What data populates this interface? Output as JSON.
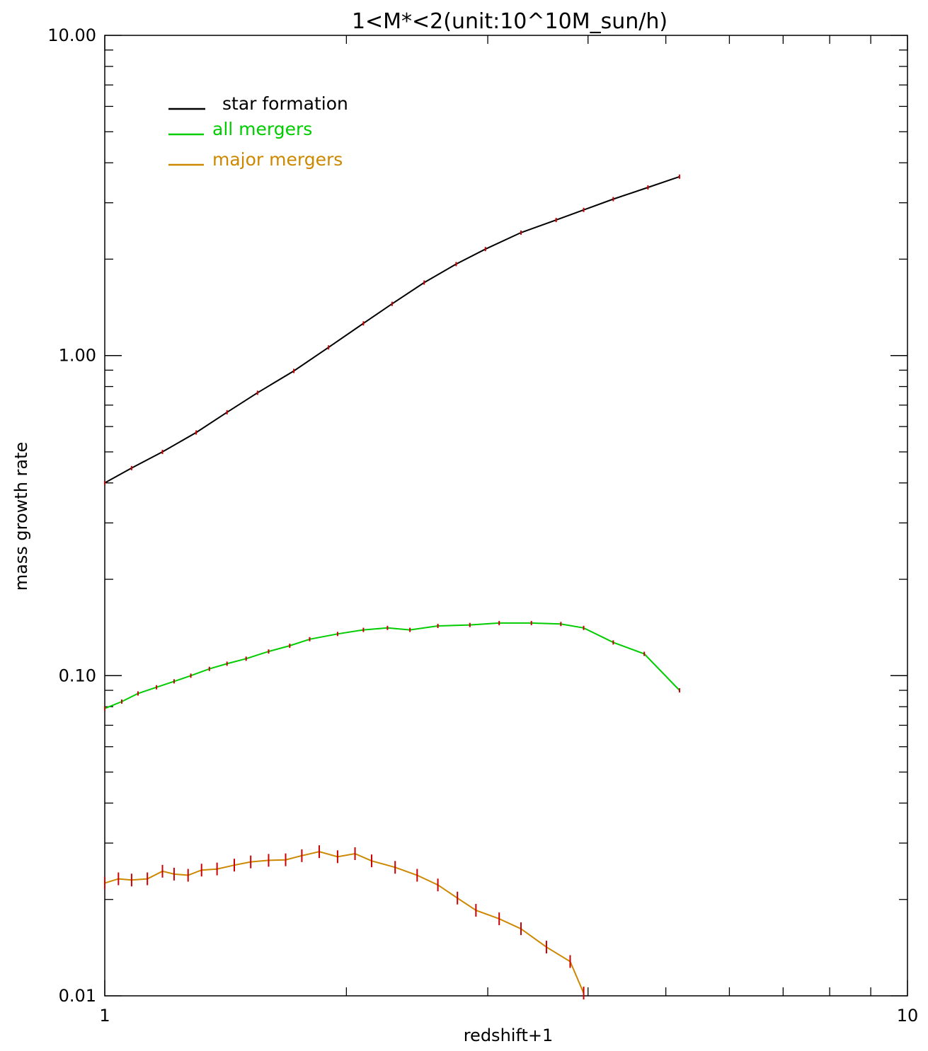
{
  "chart_data": {
    "type": "line",
    "title": "1<M*<2(unit:10^10M_sun/h)",
    "xlabel": "redshift+1",
    "ylabel": "mass growth rate",
    "xscale": "log",
    "yscale": "log",
    "xlim": [
      1,
      10
    ],
    "ylim": [
      0.01,
      10
    ],
    "x_ticks": [
      "1",
      "10"
    ],
    "y_ticks": [
      "0.01",
      "0.10",
      "1.00",
      "10.00"
    ],
    "legend": "top-left",
    "series": [
      {
        "name": "star formation",
        "color": "#000000",
        "x": [
          1.0,
          1.08,
          1.18,
          1.3,
          1.42,
          1.55,
          1.72,
          1.9,
          2.1,
          2.28,
          2.5,
          2.74,
          2.98,
          3.3,
          3.65,
          3.95,
          4.3,
          4.75,
          5.2
        ],
        "y": [
          0.4,
          0.445,
          0.5,
          0.575,
          0.665,
          0.765,
          0.895,
          1.06,
          1.26,
          1.45,
          1.69,
          1.93,
          2.15,
          2.42,
          2.65,
          2.85,
          3.08,
          3.35,
          3.62
        ]
      },
      {
        "name": "all mergers",
        "color": "#00cc00",
        "x": [
          1.0,
          1.05,
          1.1,
          1.16,
          1.22,
          1.28,
          1.35,
          1.42,
          1.5,
          1.6,
          1.7,
          1.8,
          1.95,
          2.1,
          2.25,
          2.4,
          2.6,
          2.85,
          3.1,
          3.4,
          3.7,
          3.95,
          4.3,
          4.7,
          5.2
        ],
        "y": [
          0.079,
          0.083,
          0.088,
          0.092,
          0.096,
          0.1,
          0.105,
          0.109,
          0.113,
          0.119,
          0.124,
          0.13,
          0.135,
          0.139,
          0.141,
          0.139,
          0.143,
          0.144,
          0.146,
          0.146,
          0.145,
          0.141,
          0.127,
          0.117,
          0.09
        ]
      },
      {
        "name": "major mergers",
        "color": "#cc8800",
        "x": [
          1.0,
          1.04,
          1.08,
          1.13,
          1.18,
          1.22,
          1.27,
          1.32,
          1.38,
          1.45,
          1.52,
          1.6,
          1.68,
          1.76,
          1.85,
          1.95,
          2.05,
          2.15,
          2.3,
          2.45,
          2.6,
          2.75,
          2.9,
          3.1,
          3.3,
          3.55,
          3.8,
          3.95
        ],
        "y": [
          0.0225,
          0.0232,
          0.023,
          0.0232,
          0.0245,
          0.024,
          0.0238,
          0.0247,
          0.0249,
          0.0256,
          0.0262,
          0.0265,
          0.0266,
          0.0274,
          0.0282,
          0.0272,
          0.0278,
          0.0264,
          0.0252,
          0.0238,
          0.0222,
          0.0202,
          0.0185,
          0.0174,
          0.0162,
          0.0142,
          0.0128,
          0.0102
        ]
      }
    ]
  }
}
